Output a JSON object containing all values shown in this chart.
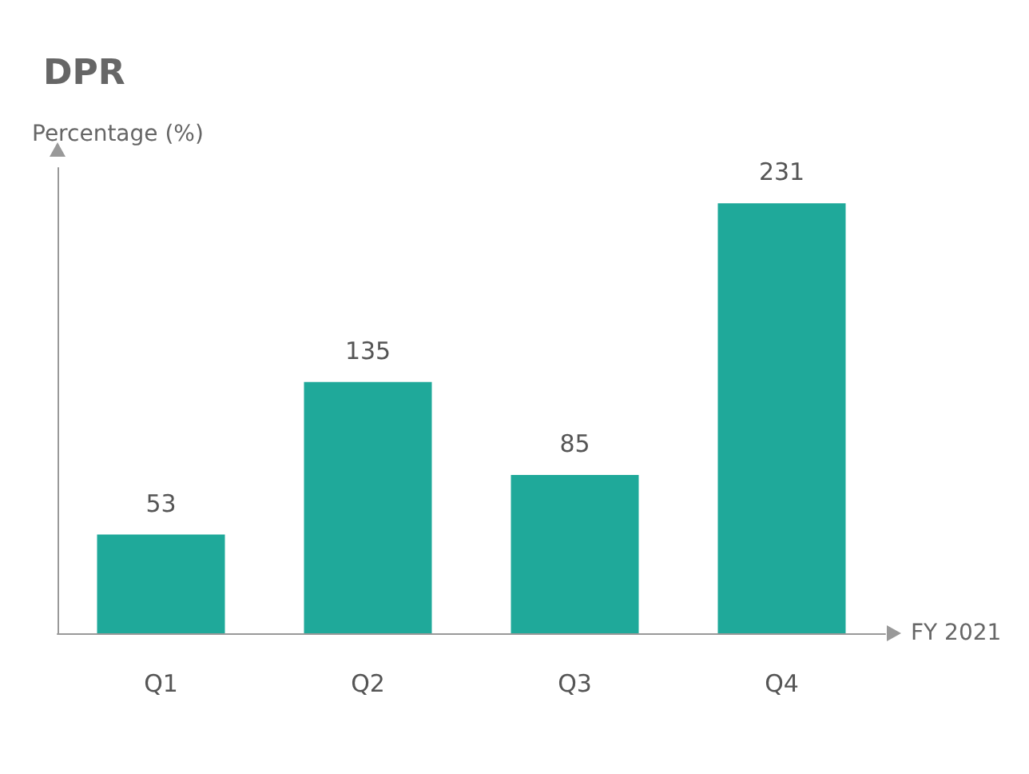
{
  "chart_data": {
    "type": "bar",
    "title": "DPR",
    "ylabel": "Percentage (%)",
    "xlabel": "FY 2021",
    "categories": [
      "Q1",
      "Q2",
      "Q3",
      "Q4"
    ],
    "values": [
      53,
      135,
      85,
      231
    ],
    "color": "#1fa99a",
    "data_labels": true
  }
}
